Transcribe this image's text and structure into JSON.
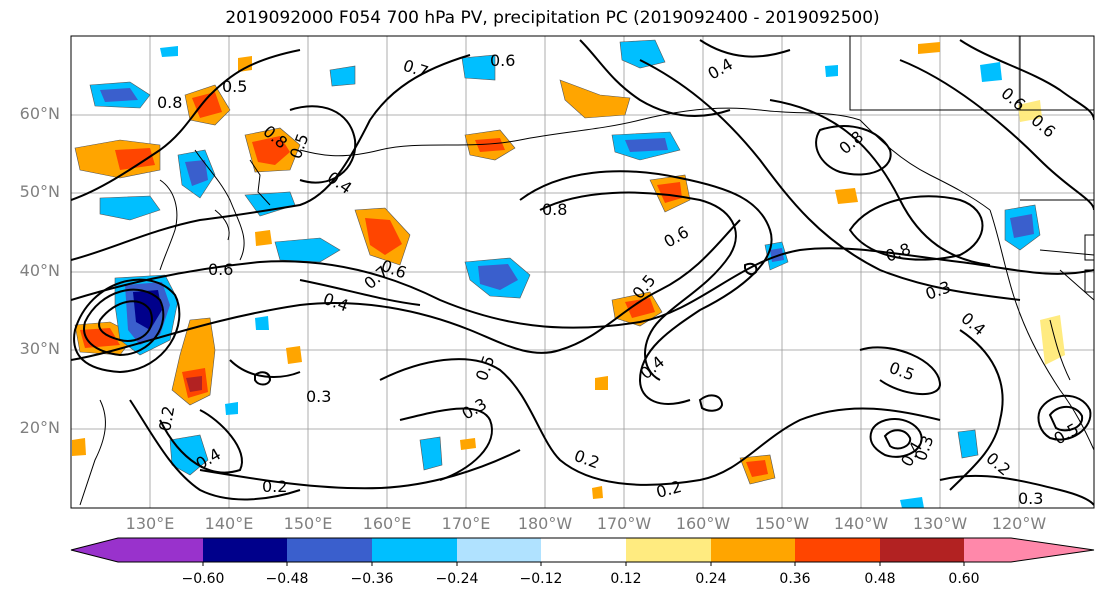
{
  "title": "2019092000 F054 700 hPa PV, precipitation PC (2019092400 - 2019092500)",
  "lat_labels": [
    "60°N",
    "50°N",
    "40°N",
    "30°N",
    "20°N"
  ],
  "lon_labels": [
    "130°E",
    "140°E",
    "150°E",
    "160°E",
    "170°E",
    "180°W",
    "170°W",
    "160°W",
    "150°W",
    "140°W",
    "130°W",
    "120°W"
  ],
  "contour_labels": [
    "0.6",
    "0.7",
    "0.5",
    "0.8",
    "0.4",
    "0.8",
    "0.5",
    "0.4",
    "0.8",
    "0.6",
    "0.8",
    "0.8",
    "0.5",
    "0.6",
    "0.4",
    "0.7",
    "0.6",
    "0.4",
    "0.3",
    "0.3",
    "0.5",
    "0.4",
    "0.3",
    "0.5",
    "0.2",
    "0.2",
    "0.4",
    "0.2",
    "0.2",
    "0.3",
    "0.2",
    "0.3",
    "0.5",
    "0.6",
    "0.4",
    "0.6"
  ],
  "colorbar": {
    "ticks": [
      "−0.60",
      "−0.48",
      "−0.36",
      "−0.24",
      "−0.12",
      "0.12",
      "0.24",
      "0.36",
      "0.48",
      "0.60"
    ],
    "colors": [
      "#9932cc",
      "#00008b",
      "#3a5fcd",
      "#00bfff",
      "#b0e2ff",
      "#ffffff",
      "#ffeb80",
      "#ffa500",
      "#ff4500",
      "#b22222",
      "#ff88aa"
    ]
  }
}
